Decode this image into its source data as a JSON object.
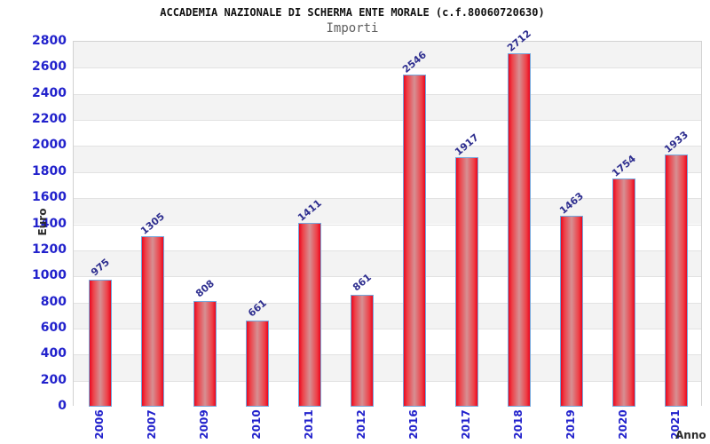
{
  "title": "ACCADEMIA NAZIONALE DI SCHERMA ENTE MORALE (c.f.80060720630)",
  "subtitle": "Importi",
  "chart_data": {
    "type": "bar",
    "title": "ACCADEMIA NAZIONALE DI SCHERMA ENTE MORALE (c.f.80060720630)",
    "subtitle": "Importi",
    "xlabel": "Anno",
    "ylabel": "Euro",
    "categories": [
      "2006",
      "2007",
      "2009",
      "2010",
      "2011",
      "2012",
      "2016",
      "2017",
      "2018",
      "2019",
      "2020",
      "2021"
    ],
    "values": [
      975,
      1305,
      808,
      661,
      1411,
      861,
      2546,
      1917,
      2712,
      1463,
      1754,
      1933
    ],
    "ylim": [
      0,
      2800
    ],
    "ytick_step": 200,
    "yticks": [
      0,
      200,
      400,
      600,
      800,
      1000,
      1200,
      1400,
      1600,
      1800,
      2000,
      2200,
      2400,
      2600,
      2800
    ],
    "grid": "horizontal-alternating-bands",
    "legend_position": "none",
    "bar_value_labels_rotated": true,
    "x_labels_rotated_vertical": true
  },
  "colors": {
    "bar_edge_red": "#e9071f",
    "bar_center_red": "#d69093",
    "bar_border_blue": "#74a7dc",
    "axis_tick_label_blue": "#2222cc",
    "value_label_navy": "#2e2e8f",
    "band_gray": "#f3f3f3",
    "band_white": "#ffffff",
    "plot_border_gray": "#d2d2d2",
    "title_black": "#111111",
    "subtitle_gray": "#5f5f5f",
    "axis_title_dark": "#2b2b2b"
  }
}
